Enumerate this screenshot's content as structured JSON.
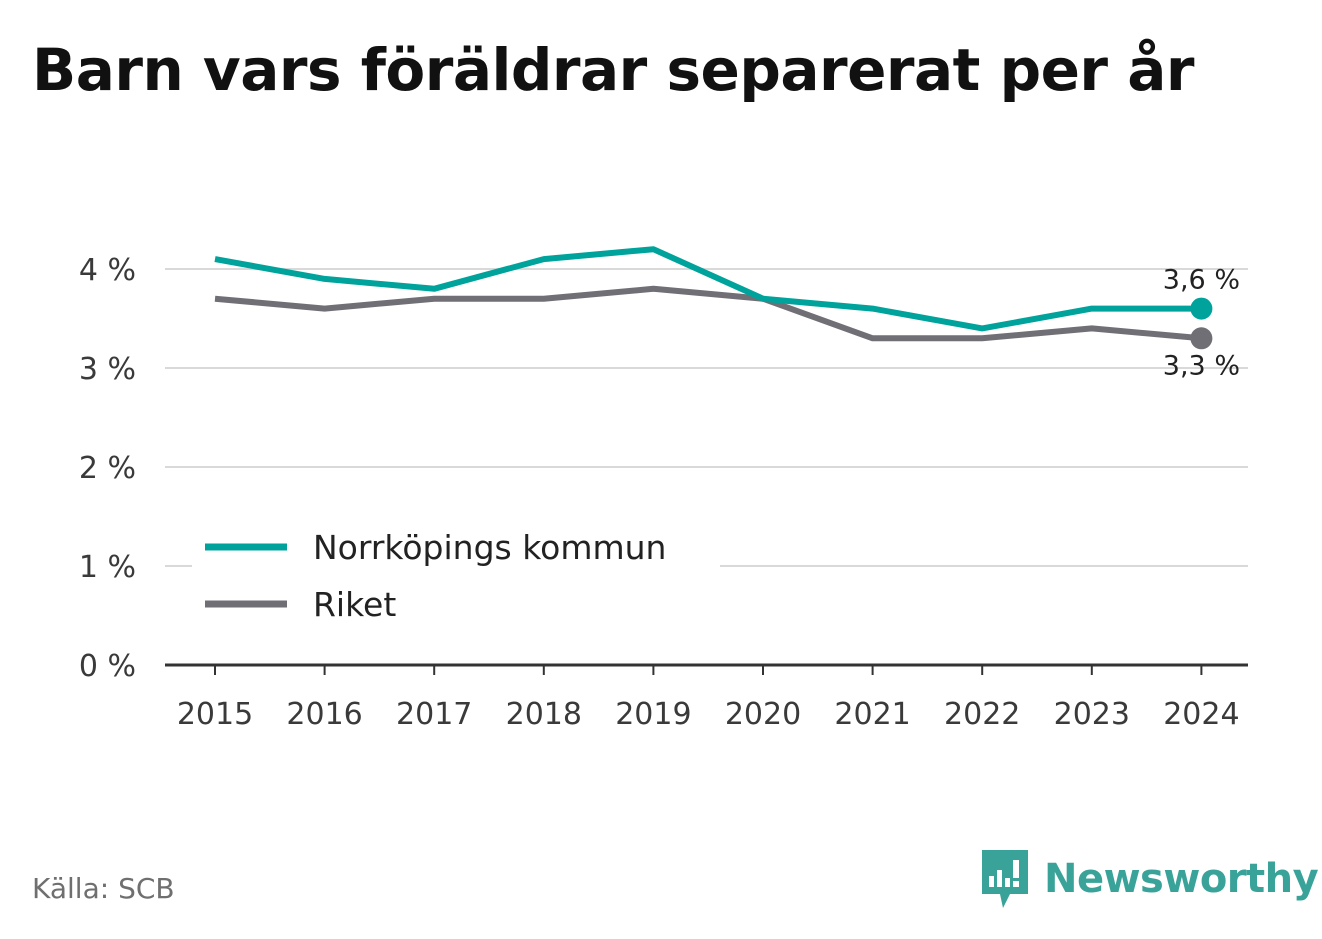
{
  "title": "Barn vars föräldrar separerat per år",
  "source": "Källa: SCB",
  "brand": {
    "name": "Newsworthy",
    "icon": "newsworthy-logo-icon",
    "color": "#3aa399"
  },
  "chart_data": {
    "type": "line",
    "title": "Barn vars föräldrar separerat per år",
    "x": [
      "2015",
      "2016",
      "2017",
      "2018",
      "2019",
      "2020",
      "2021",
      "2022",
      "2023",
      "2024"
    ],
    "ylim": [
      0,
      4.4
    ],
    "yticks": [
      0,
      1,
      2,
      3,
      4
    ],
    "ytick_labels": [
      "0 %",
      "1 %",
      "2 %",
      "3 %",
      "4 %"
    ],
    "grid": true,
    "legend_position": "bottom-left",
    "series": [
      {
        "name": "Norrköpings kommun",
        "color": "#00a39b",
        "values": [
          4.1,
          3.9,
          3.8,
          4.1,
          4.2,
          3.7,
          3.6,
          3.4,
          3.6,
          3.6
        ],
        "end_label": "3,6 %"
      },
      {
        "name": "Riket",
        "color": "#6f6f75",
        "values": [
          3.7,
          3.6,
          3.7,
          3.7,
          3.8,
          3.7,
          3.3,
          3.3,
          3.4,
          3.3
        ],
        "end_label": "3,3 %"
      }
    ]
  }
}
